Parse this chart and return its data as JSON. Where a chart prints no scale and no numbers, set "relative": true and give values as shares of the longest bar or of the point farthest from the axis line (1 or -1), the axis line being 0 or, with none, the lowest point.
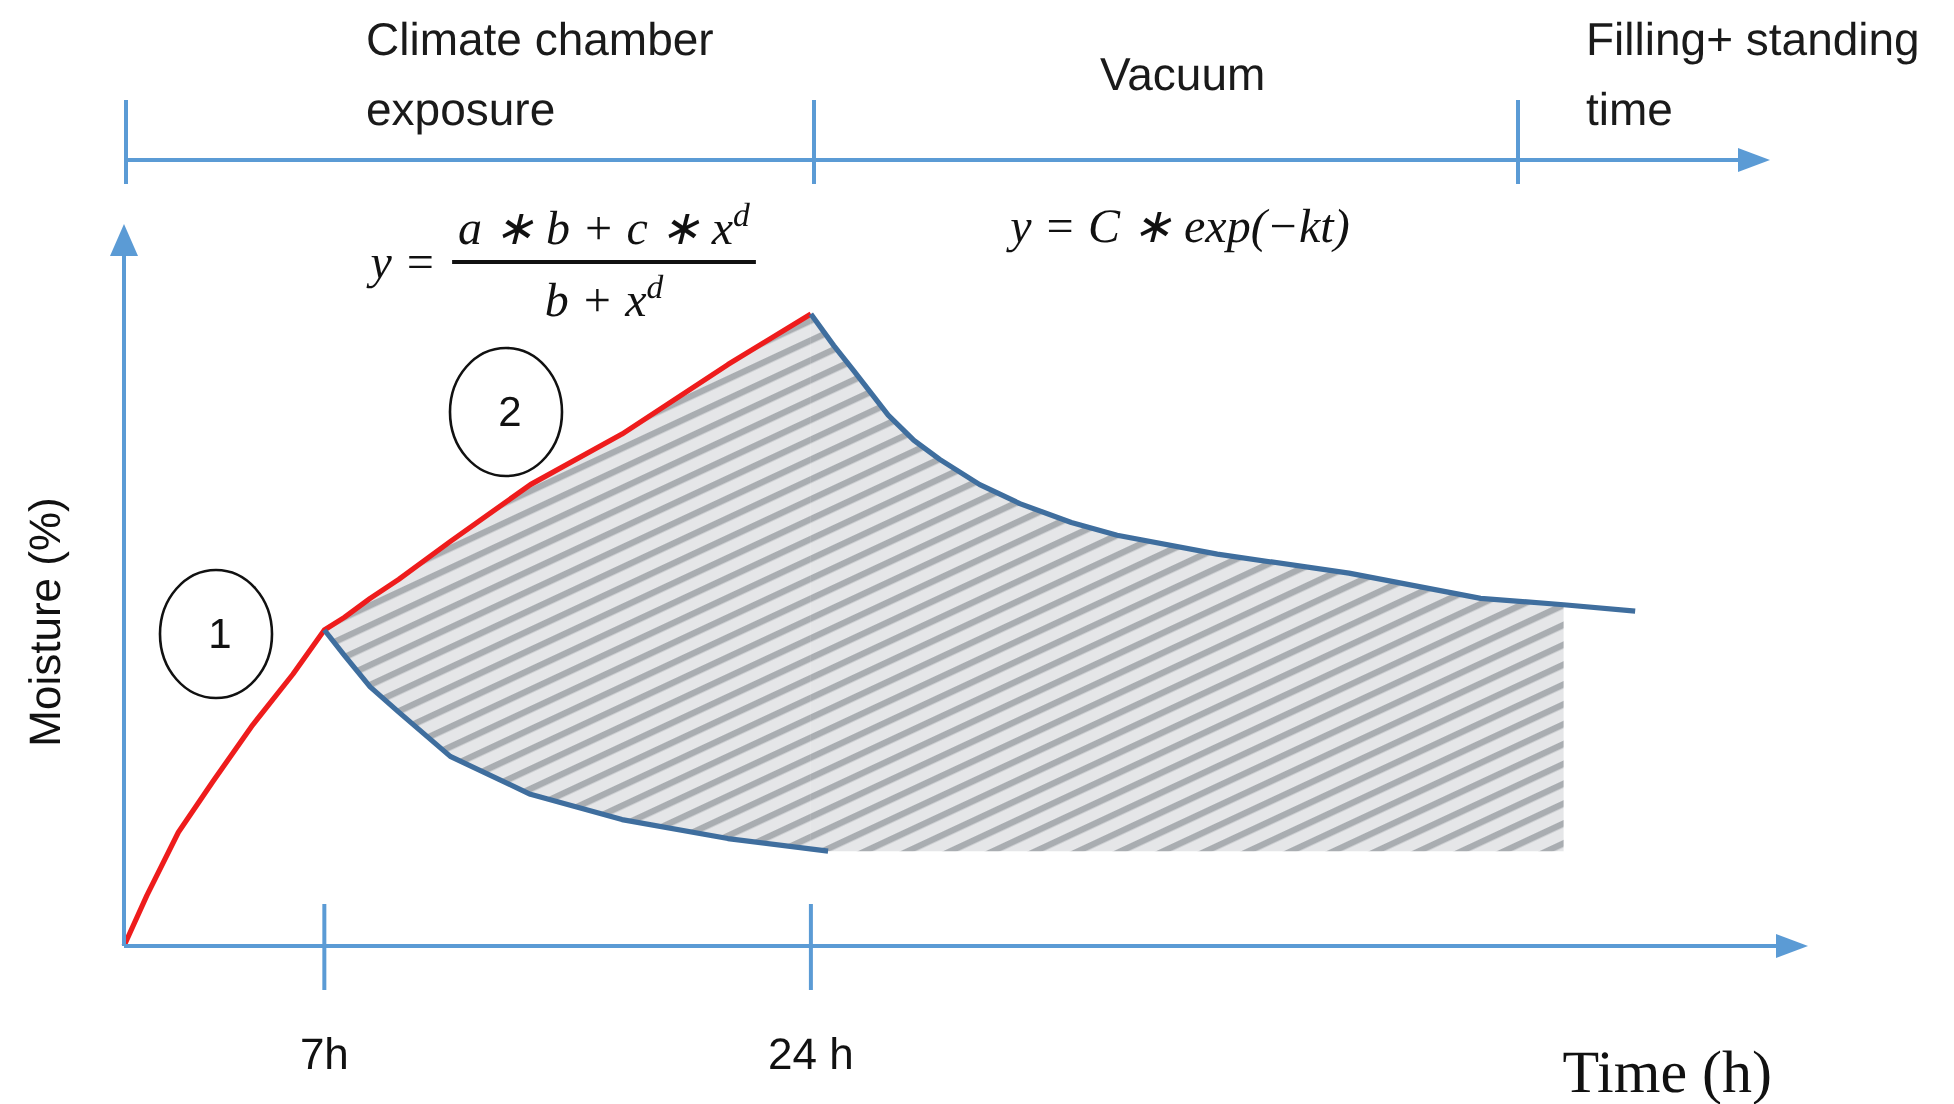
{
  "chart_data": {
    "type": "line",
    "xlabel": "Time (h)",
    "ylabel": "Moisture (%)",
    "relative": true,
    "xlim": [
      0,
      58
    ],
    "xticks": [
      {
        "value": 7,
        "label": "7h"
      },
      {
        "value": 24,
        "label": "24 h"
      }
    ],
    "series": [
      {
        "color": "#ee1c1c",
        "x": [
          0,
          0.8,
          1.9,
          3.1,
          4.5,
          5.9,
          7,
          7.7,
          8.6,
          9.6,
          11.4,
          14.2,
          17.4,
          21.1,
          24
        ],
        "values": [
          0,
          0.08,
          0.18,
          0.26,
          0.35,
          0.43,
          0.5,
          0.52,
          0.55,
          0.58,
          0.64,
          0.73,
          0.81,
          0.92,
          1
        ],
        "lower": [
          null,
          null,
          null,
          null,
          null,
          null,
          0.5,
          0.46,
          0.41,
          0.37,
          0.3,
          0.24,
          0.2,
          0.17,
          0.15
        ],
        "upper": [
          null,
          null,
          null,
          null,
          null,
          null,
          0.5,
          0.52,
          0.55,
          0.58,
          0.64,
          0.73,
          0.81,
          0.92,
          1
        ]
      },
      {
        "color": "#3f6e9e",
        "x": [
          7,
          7.7,
          8.6,
          9.6,
          11.4,
          14.2,
          17.4,
          21.1,
          24.6
        ],
        "values": [
          0.5,
          0.46,
          0.41,
          0.37,
          0.3,
          0.24,
          0.2,
          0.17,
          0.15
        ]
      },
      {
        "color": "#3f6e9e",
        "x": [
          24,
          24.8,
          25.5,
          26.7,
          27.6,
          28.5,
          29.9,
          31.3,
          33.1,
          34.7,
          38.2,
          42.8,
          47.4,
          50.3,
          52.8
        ],
        "values": [
          1,
          0.95,
          0.91,
          0.84,
          0.8,
          0.77,
          0.73,
          0.7,
          0.67,
          0.65,
          0.62,
          0.59,
          0.55,
          0.54,
          0.53
        ],
        "lower": [
          0.15,
          0.15,
          0.15,
          0.15,
          0.15,
          0.15,
          0.15,
          0.15,
          0.15,
          0.15,
          0.15,
          0.15,
          0.15,
          0.15,
          null
        ],
        "upper": [
          1,
          0.95,
          0.91,
          0.84,
          0.8,
          0.77,
          0.73,
          0.7,
          0.67,
          0.65,
          0.62,
          0.59,
          0.55,
          0.54,
          null
        ]
      }
    ],
    "annotations": [
      "Climate chamber exposure",
      "Vacuum",
      "Filling+ standing time",
      "y =",
      "a ∗ b + c ∗ x$^{d}$",
      "b + x$^{d}$",
      "y = C ∗ exp(−kt)",
      "1",
      "2"
    ]
  }
}
